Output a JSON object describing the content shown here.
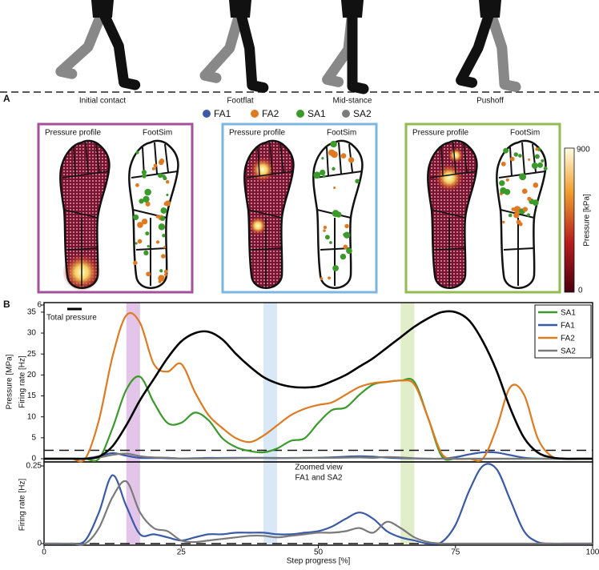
{
  "panel_a": {
    "label": "A",
    "phases": [
      "Initial contact",
      "Footflat",
      "Mid-stance",
      "Pushoff"
    ],
    "afferents": [
      {
        "name": "FA1",
        "color": "#3a5aa8"
      },
      {
        "name": "FA2",
        "color": "#e07a20"
      },
      {
        "name": "SA1",
        "color": "#3a9a2a"
      },
      {
        "name": "SA2",
        "color": "#7a7a7a"
      }
    ],
    "panels": [
      {
        "left": "Pressure profile",
        "right": "FootSim",
        "color": "#a5509a"
      },
      {
        "left": "Pressure profile",
        "right": "FootSim",
        "color": "#7bb7e0"
      },
      {
        "left": "Pressure profile",
        "right": "FootSim",
        "color": "#90bd4c"
      }
    ],
    "colorbar": {
      "max": 900,
      "min": 0,
      "label": "Pressure [kPa]"
    }
  },
  "chart_data": {
    "type": "line",
    "label": "B",
    "x": [
      0,
      2.5,
      5,
      7.5,
      10,
      12.5,
      15,
      17.5,
      20,
      22.5,
      25,
      27.5,
      30,
      32.5,
      35,
      37.5,
      40,
      42.5,
      45,
      47.5,
      50,
      52.5,
      55,
      57.5,
      60,
      62.5,
      65,
      67.5,
      70,
      72.5,
      75,
      77.5,
      80,
      82.5,
      85,
      87.5,
      90,
      92.5,
      95,
      97.5,
      100
    ],
    "xlim": [
      0,
      100
    ],
    "xticks": [
      0,
      25,
      50,
      75,
      100
    ],
    "xlabel": "Step progress [%]",
    "ylabel": "Pressure [MPa]",
    "ylim": [
      0,
      36.7
    ],
    "yticks": [
      0,
      5,
      10,
      15,
      20,
      25,
      30,
      35
    ],
    "y2label": "Firing rate [Hz]",
    "y2lim": [
      0,
      6
    ],
    "y2ticks": [
      6
    ],
    "pressure": {
      "name": "Total pressure",
      "color": "#000000",
      "values": [
        0,
        0,
        0,
        0,
        0.5,
        3,
        8,
        14,
        19,
        24,
        28,
        30,
        30.3,
        28.5,
        25,
        22,
        19.5,
        18,
        17.2,
        17,
        17.3,
        18.5,
        20,
        22,
        24,
        26.5,
        29,
        31.5,
        33.5,
        35,
        35,
        33,
        28,
        21,
        12,
        5,
        1.5,
        0.3,
        0,
        0,
        0
      ]
    },
    "series": [
      {
        "name": "SA1",
        "color": "#3a9a2a",
        "axis": "y2",
        "values": [
          0,
          0,
          0,
          0,
          0,
          1.2,
          2.7,
          3.2,
          2.2,
          1.4,
          1.4,
          1.8,
          1.5,
          0.8,
          0.45,
          0.3,
          0.25,
          0.4,
          0.7,
          0.8,
          1.4,
          1.9,
          2.0,
          2.5,
          2.9,
          3.0,
          3.05,
          3.0,
          1.6,
          0.1,
          0,
          0,
          0,
          0,
          0,
          0,
          0,
          0,
          0,
          0,
          0
        ]
      },
      {
        "name": "FA1",
        "color": "#3a5aa8",
        "axis": "y2",
        "values": [
          0,
          0,
          0,
          0.01,
          0.1,
          0.22,
          0.12,
          0.03,
          0.03,
          0.02,
          0.01,
          0.02,
          0.03,
          0.03,
          0.035,
          0.035,
          0.035,
          0.03,
          0.03,
          0.035,
          0.04,
          0.055,
          0.08,
          0.1,
          0.08,
          0.04,
          0.02,
          0.01,
          0,
          0.005,
          0.06,
          0.17,
          0.25,
          0.24,
          0.14,
          0.04,
          0.005,
          0,
          0,
          0,
          0
        ]
      },
      {
        "name": "FA2",
        "color": "#e07a20",
        "axis": "y2",
        "values": [
          0,
          0,
          0,
          0,
          1.5,
          4,
          5.6,
          5.3,
          3.7,
          3.4,
          3.7,
          2.6,
          1.7,
          1.2,
          0.8,
          0.65,
          0.9,
          1.3,
          1.7,
          1.95,
          2.1,
          2.2,
          2.5,
          2.8,
          2.95,
          3.0,
          3.05,
          2.9,
          1.6,
          0.2,
          0,
          0,
          0,
          1.2,
          2.8,
          2.5,
          0.8,
          0.1,
          0,
          0,
          0
        ]
      },
      {
        "name": "SA2",
        "color": "#7a7a7a",
        "axis": "y2",
        "values": [
          0,
          0,
          0,
          0,
          0.05,
          0.15,
          0.2,
          0.1,
          0.05,
          0.04,
          0.01,
          0.005,
          0.01,
          0.015,
          0.02,
          0.025,
          0.025,
          0.02,
          0.025,
          0.03,
          0.035,
          0.035,
          0.04,
          0.05,
          0.035,
          0.07,
          0.05,
          0.02,
          0.005,
          0,
          0,
          0,
          0,
          0,
          0,
          0,
          0,
          0,
          0,
          0,
          0
        ]
      }
    ],
    "threshold": 2,
    "highlights": [
      {
        "range": [
          15,
          17.5
        ],
        "color": "#d7addf"
      },
      {
        "range": [
          40,
          42.5
        ],
        "color": "#c8def3"
      },
      {
        "range": [
          65,
          67.5
        ],
        "color": "#d5e6b4"
      }
    ],
    "zoom": {
      "title": "Zoomed view",
      "subtitle": "FA1 and SA2",
      "ylabel": "Firing rate [Hz]",
      "ylim": [
        0,
        0.25
      ],
      "yticks": [
        0,
        0.25
      ],
      "series": [
        1,
        3
      ]
    }
  }
}
